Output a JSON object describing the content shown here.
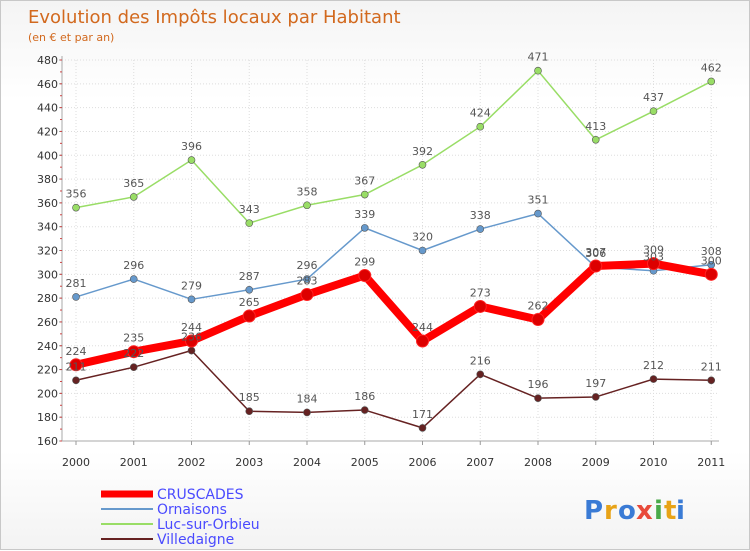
{
  "chart_data": {
    "type": "line",
    "title": "Evolution des Impôts locaux par Habitant",
    "subtitle": "(en € et par an)",
    "xlabel": "",
    "ylabel": "",
    "ylim": [
      160,
      480
    ],
    "yticks": [
      160,
      180,
      200,
      220,
      240,
      260,
      280,
      300,
      320,
      340,
      360,
      380,
      400,
      420,
      440,
      460,
      480
    ],
    "categories": [
      "2000",
      "2001",
      "2002",
      "2003",
      "2004",
      "2005",
      "2006",
      "2007",
      "2008",
      "2009",
      "2010",
      "2011"
    ],
    "grid": true,
    "legend_position": "bottom-left",
    "series": [
      {
        "name": "Luc-sur-Orbieu",
        "color": "#99dd66",
        "values": [
          356,
          365,
          396,
          343,
          358,
          367,
          392,
          424,
          471,
          413,
          437,
          462
        ]
      },
      {
        "name": "Ornaisons",
        "color": "#6699cc",
        "values": [
          281,
          296,
          279,
          287,
          296,
          339,
          320,
          338,
          351,
          306,
          303,
          308
        ]
      },
      {
        "name": "Villedaigne",
        "color": "#662222",
        "values": [
          211,
          222,
          236,
          185,
          184,
          186,
          171,
          216,
          196,
          197,
          212,
          211
        ]
      },
      {
        "name": "CRUSCADES",
        "color": "#ff0000",
        "values": [
          224,
          235,
          244,
          265,
          283,
          299,
          244,
          273,
          262,
          307,
          309,
          300
        ]
      }
    ],
    "legend_order": [
      "CRUSCADES",
      "Ornaisons",
      "Luc-sur-Orbieu",
      "Villedaigne"
    ]
  },
  "logo": {
    "letters": [
      "P",
      "r",
      "o",
      "x",
      "i",
      "t",
      "i"
    ],
    "colors": [
      "#3a7bd5",
      "#e8a317",
      "#3a7bd5",
      "#e84a3a",
      "#4aaa4a",
      "#e8a317",
      "#3a7bd5"
    ]
  }
}
